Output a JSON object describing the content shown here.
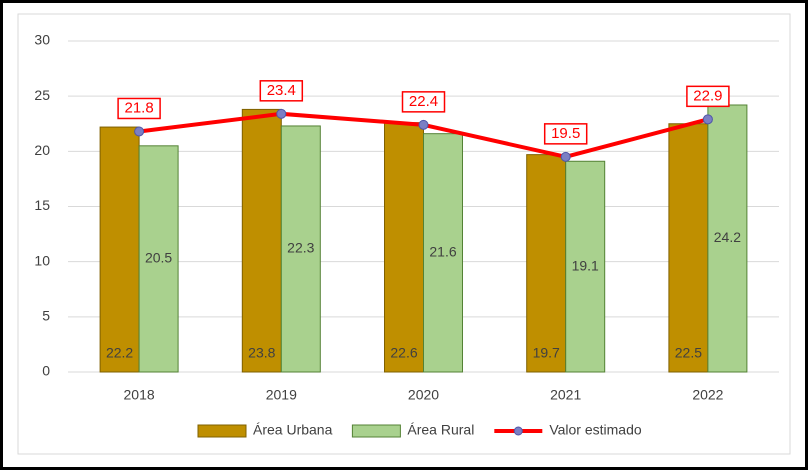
{
  "chart_data": {
    "type": "bar",
    "categories": [
      "2018",
      "2019",
      "2020",
      "2021",
      "2022"
    ],
    "series": [
      {
        "name": "Área Urbana",
        "color": "#bf8f00",
        "values": [
          22.2,
          23.8,
          22.6,
          19.7,
          22.5
        ]
      },
      {
        "name": "Área Rural",
        "color": "#a9d18e",
        "values": [
          20.5,
          22.3,
          21.6,
          19.1,
          24.2
        ]
      },
      {
        "name": "Valor estimado",
        "color": "#ff0000",
        "type": "line",
        "values": [
          21.8,
          23.4,
          22.4,
          19.5,
          22.9
        ]
      }
    ],
    "ylim": [
      0,
      30
    ],
    "yticks": [
      0,
      5,
      10,
      15,
      20,
      25,
      30
    ],
    "grid": true,
    "legend": "bottom"
  }
}
